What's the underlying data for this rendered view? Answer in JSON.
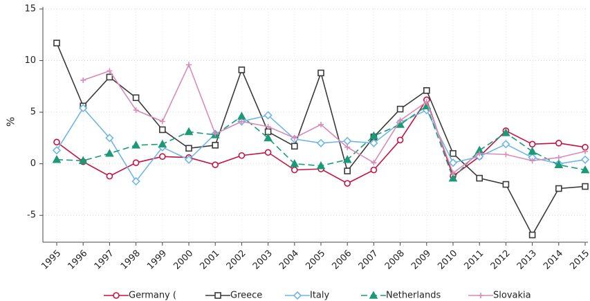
{
  "chart_data": {
    "type": "line",
    "y_label": "%",
    "categories": [
      "1995",
      "1996",
      "1997",
      "1998",
      "1999",
      "2000",
      "2001",
      "2002",
      "2003",
      "2004",
      "2005",
      "2006",
      "2007",
      "2008",
      "2009",
      "2010",
      "2011",
      "2012",
      "2013",
      "2014",
      "2015"
    ],
    "ylim": [
      -7.6,
      15
    ],
    "yticks": [
      -5,
      0,
      5,
      10,
      15
    ],
    "grid": true,
    "legend": "bottom",
    "series": [
      {
        "name": "Germany (",
        "color": "#c8103e",
        "marker": "circle",
        "dashed": false,
        "values": [
          2.1,
          0.2,
          -1.2,
          0.1,
          0.7,
          0.6,
          -0.1,
          0.8,
          1.1,
          -0.6,
          -0.5,
          -1.9,
          -0.6,
          2.3,
          6.2,
          -1.2,
          0.7,
          3.2,
          1.9,
          2.0,
          1.6
        ]
      },
      {
        "name": "Greece",
        "color": "#3a3a3a",
        "marker": "square",
        "dashed": false,
        "values": [
          11.7,
          5.6,
          8.4,
          6.4,
          3.3,
          1.5,
          1.8,
          9.1,
          3.1,
          1.7,
          8.8,
          -0.7,
          2.6,
          5.3,
          7.1,
          1.0,
          -1.4,
          -2.0,
          -6.9,
          -2.4,
          -2.2
        ]
      },
      {
        "name": "Italy",
        "color": "#6db6e6",
        "marker": "diamond",
        "dashed": false,
        "values": [
          1.3,
          5.4,
          2.5,
          -1.7,
          1.6,
          0.4,
          2.9,
          4.1,
          4.7,
          2.4,
          2.0,
          2.2,
          2.0,
          4.0,
          5.2,
          0.1,
          0.7,
          1.9,
          0.6,
          0.0,
          0.4
        ]
      },
      {
        "name": "Netherlands",
        "color": "#1a9a76",
        "marker": "triangle",
        "dashed": true,
        "values": [
          0.4,
          0.3,
          1.0,
          1.8,
          1.9,
          3.1,
          2.8,
          4.6,
          2.5,
          0.0,
          -0.2,
          0.4,
          2.7,
          3.8,
          5.6,
          -1.4,
          1.3,
          3.0,
          1.2,
          -0.1,
          -0.6
        ]
      },
      {
        "name": "Slovakia",
        "color": "#d88bb6",
        "marker": "plus",
        "dashed": false,
        "values": [
          null,
          8.1,
          9.0,
          5.2,
          4.1,
          9.6,
          2.9,
          4.1,
          3.6,
          2.5,
          3.8,
          1.6,
          0.1,
          4.2,
          6.0,
          -0.9,
          1.0,
          0.9,
          0.3,
          0.6,
          1.2
        ]
      }
    ]
  }
}
